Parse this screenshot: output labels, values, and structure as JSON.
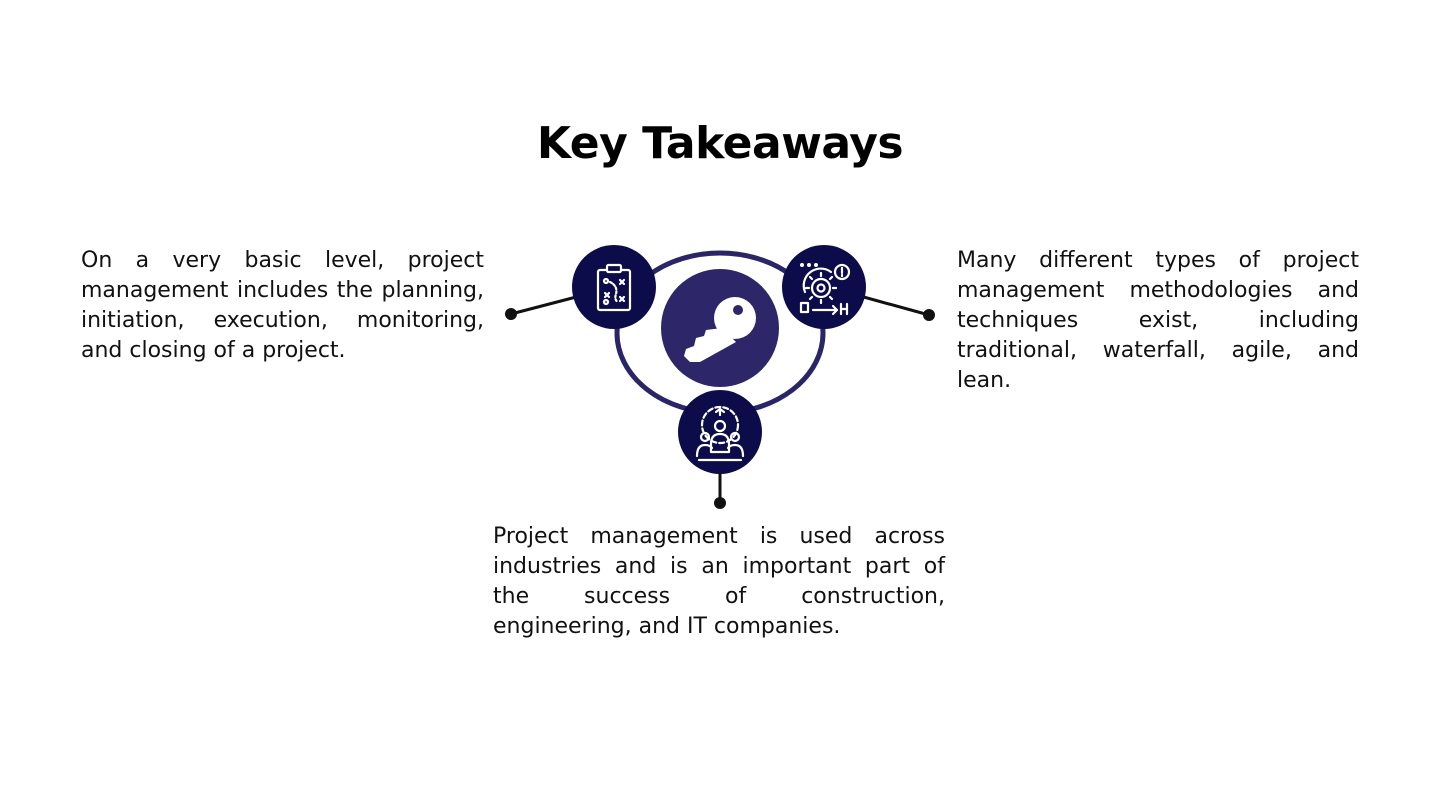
{
  "slide": {
    "title": "Key Takeaways"
  },
  "takeaways": {
    "left": "On a very basic level, project management includes the planning, initiation, execution, monitoring, and closing of a project.",
    "right": "Many different types of project management methodologies and techniques exist, including traditional, waterfall, agile, and lean.",
    "bottom": "Project management is used across industries and is an important part of the success of construction, engineering, and IT companies."
  },
  "icons": {
    "center": "key-icon",
    "top_left": "clipboard-strategy-icon",
    "top_right": "agile-process-icon",
    "bottom": "team-gear-icon"
  },
  "colors": {
    "navy_dark": "#0d0c4a",
    "navy": "#2d2769",
    "ring": "#2a2566",
    "connector": "#111111",
    "text": "#111111"
  }
}
